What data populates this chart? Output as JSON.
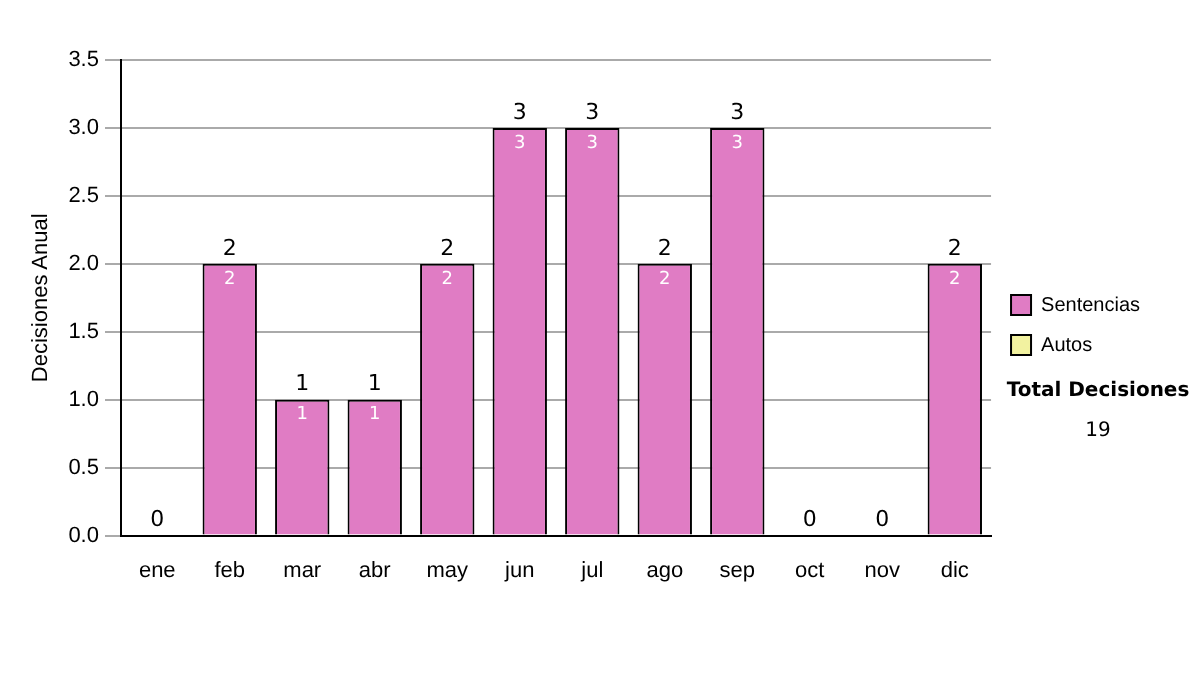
{
  "chart_data": {
    "type": "bar",
    "ylabel": "Decisiones Anual",
    "categories": [
      "ene",
      "feb",
      "mar",
      "abr",
      "may",
      "jun",
      "jul",
      "ago",
      "sep",
      "oct",
      "nov",
      "dic"
    ],
    "series": [
      {
        "name": "Sentencias",
        "color": "#e07cc4",
        "values": [
          0,
          2,
          1,
          1,
          2,
          3,
          3,
          2,
          3,
          0,
          0,
          2
        ],
        "value_labels": [
          null,
          "2",
          "1",
          "1",
          "2",
          "3",
          "3",
          "2",
          "3",
          null,
          null,
          "2"
        ]
      },
      {
        "name": "Autos",
        "color": "#f2f2a0",
        "values": [
          0,
          0,
          0,
          0,
          0,
          0,
          0,
          0,
          0,
          0,
          0,
          0
        ]
      }
    ],
    "stacked": true,
    "totals": [
      "0",
      "2",
      "1",
      "1",
      "2",
      "3",
      "3",
      "2",
      "3",
      "0",
      "0",
      "2"
    ],
    "ylim": [
      0,
      3.5
    ],
    "yticks": [
      {
        "value": 0,
        "label": "0.0"
      },
      {
        "value": 0.5,
        "label": "0.5"
      },
      {
        "value": 1,
        "label": "1.0"
      },
      {
        "value": 1.5,
        "label": "1.5"
      },
      {
        "value": 2,
        "label": "2.0"
      },
      {
        "value": 2.5,
        "label": "2.5"
      },
      {
        "value": 3,
        "label": "3.0"
      },
      {
        "value": 3.5,
        "label": "3.5"
      }
    ],
    "grid": "y",
    "legend": "right",
    "annotations": [
      "Total Decisiones",
      "19"
    ]
  }
}
